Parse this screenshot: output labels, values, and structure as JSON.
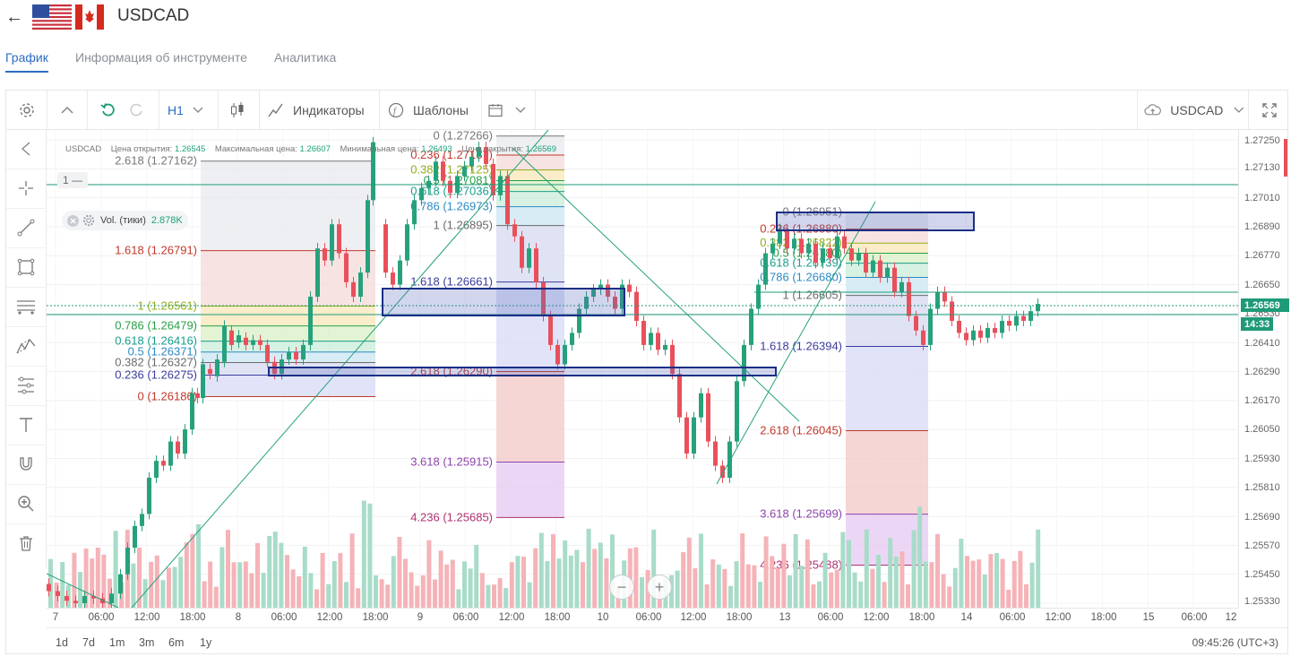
{
  "header": {
    "title": "USDCAD",
    "back_icon": "arrow-left-icon"
  },
  "tabs": [
    {
      "label": "График",
      "active": true
    },
    {
      "label": "Информация об инструменте",
      "active": false
    },
    {
      "label": "Аналитика",
      "active": false
    }
  ],
  "toolbar": {
    "timeframe": "H1",
    "indicators_label": "Индикаторы",
    "templates_label": "Шаблоны",
    "symbol": "USDCAD"
  },
  "info_bar": {
    "symbol": "USDCAD",
    "open_label": "Цена открытия:",
    "open_value": "1.26545",
    "high_label": "Максимальная цена:",
    "high_value": "1.26607",
    "low_label": "Минимальная цена:",
    "low_value": "1.26493",
    "close_label": "Цена закрытия:",
    "close_value": "1.26569"
  },
  "volume_indicator": {
    "label": "Vol. (тики)",
    "value": "2.878K"
  },
  "level_chip": {
    "label": "1 —"
  },
  "price_axis": {
    "labels": [
      "1.27250",
      "1.27130",
      "1.27010",
      "1.26890",
      "1.26770",
      "1.26650",
      "1.26530",
      "1.26410",
      "1.26290",
      "1.26170",
      "1.26050",
      "1.25930",
      "1.25810",
      "1.25690",
      "1.25570",
      "1.25450",
      "1.25330"
    ],
    "current_price": "1.26569",
    "countdown": "14:33"
  },
  "time_axis": {
    "labels": [
      "7",
      "06:00",
      "12:00",
      "18:00",
      "8",
      "06:00",
      "12:00",
      "18:00",
      "9",
      "06:00",
      "12:00",
      "18:00",
      "10",
      "06:00",
      "12:00",
      "18:00",
      "13",
      "06:00",
      "12:00",
      "18:00",
      "14",
      "06:00",
      "12:00",
      "18:00",
      "15",
      "06:00",
      "12"
    ]
  },
  "ranges": [
    "1d",
    "7d",
    "1m",
    "3m",
    "6m",
    "1y"
  ],
  "clock": "09:45:26 (UTC+3)",
  "fib_labels": {
    "a": [
      "2.618 (1.27162)",
      "1.618 (1.26791)",
      "1 (1.26561)",
      "0.786 (1.26479)",
      "0.618 (1.26416)",
      "0.5 (1.26371)",
      "0.382 (1.26327)",
      "0.236 (1.26275)",
      "0 (1.26186)"
    ],
    "b": [
      "0 (1.27266)",
      "0.236 (1.27187)",
      "0.382 (1.27125)",
      "0.5 (1.27081)",
      "0.618 (1.27036)",
      "0.786 (1.26973)",
      "1 (1.26895)",
      "1.618 (1.26661)",
      "2.618 (1.26290)",
      "3.618 (1.25915)",
      "4.236 (1.25685)"
    ],
    "c": [
      "0 (1.26951)",
      "0.236 (1.26880)",
      "0.382 (1.26822)",
      "0.5 (1.26780)",
      "0.618 (1.26739)",
      "0.786 (1.26680)",
      "1 (1.26605)",
      "1.618 (1.26394)",
      "2.618 (1.26045)",
      "3.618 (1.25699)",
      "4.236 (1.25488)"
    ]
  },
  "colors": {
    "up": "#26a17b",
    "down": "#e8505b",
    "accent": "#2b6cc4"
  }
}
